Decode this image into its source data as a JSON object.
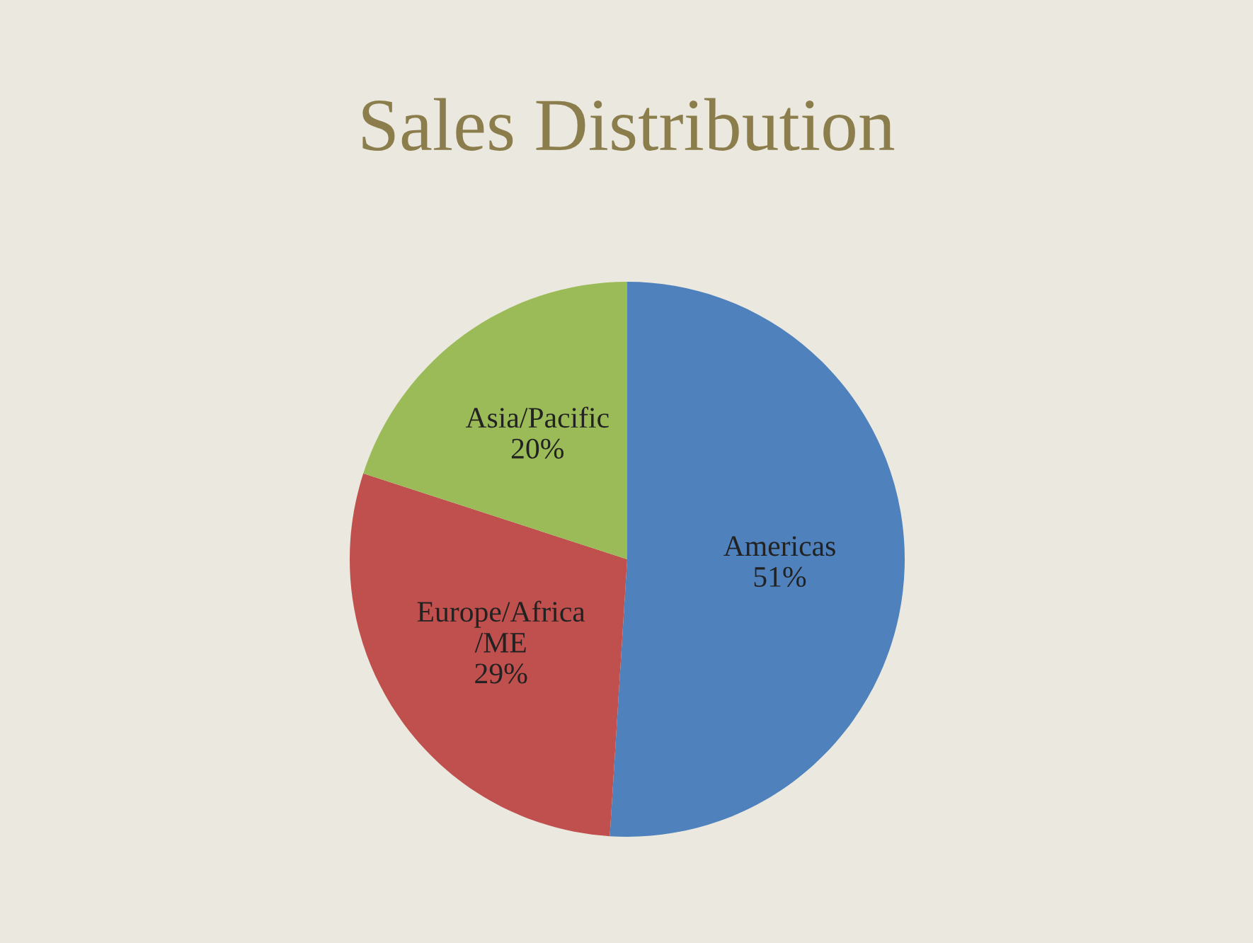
{
  "chart_data": {
    "type": "pie",
    "title": "Sales Distribution",
    "categories": [
      "Americas",
      "Europe/Africa\n/ME",
      "Asia/Pacific"
    ],
    "values": [
      51,
      29,
      20
    ],
    "value_labels": [
      "51%",
      "29%",
      "20%"
    ],
    "colors": [
      "#4f81bd",
      "#c0504d",
      "#9bbb59"
    ],
    "legend": false
  }
}
